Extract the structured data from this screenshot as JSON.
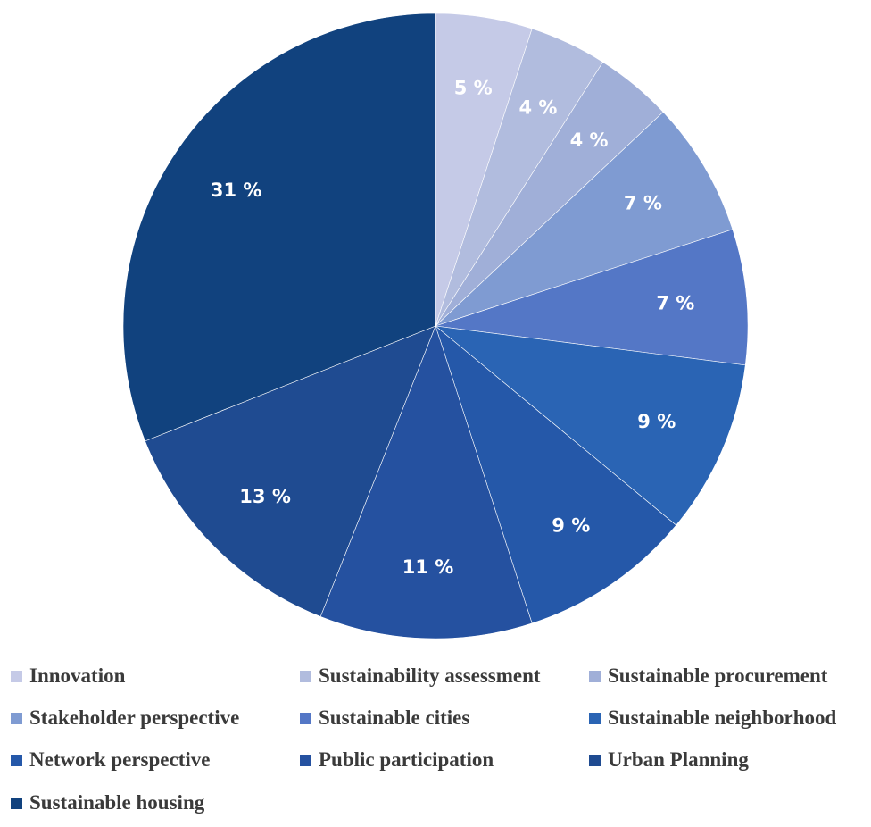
{
  "chart_data": {
    "type": "pie",
    "title": "",
    "slices": [
      {
        "label": "Innovation",
        "value": 5,
        "value_label": "5 %",
        "color": "#c5cae7"
      },
      {
        "label": "Sustainability assessment",
        "value": 4,
        "value_label": "4 %",
        "color": "#b1bcde"
      },
      {
        "label": "Sustainable procurement",
        "value": 4,
        "value_label": "4 %",
        "color": "#a0afd8"
      },
      {
        "label": "Stakeholder perspective",
        "value": 7,
        "value_label": "7 %",
        "color": "#7f9bd2"
      },
      {
        "label": "Sustainable cities",
        "value": 7,
        "value_label": "7 %",
        "color": "#5477c6"
      },
      {
        "label": "Sustainable neighborhood",
        "value": 9,
        "value_label": "9 %",
        "color": "#2a64b4"
      },
      {
        "label": "Network perspective",
        "value": 9,
        "value_label": "9 %",
        "color": "#2558a9"
      },
      {
        "label": "Public participation",
        "value": 11,
        "value_label": "11 %",
        "color": "#2551a0"
      },
      {
        "label": "Urban Planning",
        "value": 13,
        "value_label": "13 %",
        "color": "#1f4b91"
      },
      {
        "label": "Sustainable housing",
        "value": 31,
        "value_label": "31 %",
        "color": "#11427e"
      }
    ],
    "legend_position": "bottom",
    "start_angle": "12 o'clock",
    "direction": "clockwise"
  }
}
